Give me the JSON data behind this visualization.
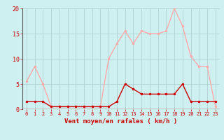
{
  "hours": [
    0,
    1,
    2,
    3,
    4,
    5,
    6,
    7,
    8,
    9,
    10,
    11,
    12,
    13,
    14,
    15,
    16,
    17,
    18,
    19,
    20,
    21,
    22,
    23
  ],
  "vent_moyen": [
    1.5,
    1.5,
    1.5,
    0.5,
    0.5,
    0.5,
    0.5,
    0.5,
    0.5,
    0.5,
    0.5,
    1.5,
    5.0,
    4.0,
    3.0,
    3.0,
    3.0,
    3.0,
    3.0,
    5.0,
    1.5,
    1.5,
    1.5,
    1.5
  ],
  "rafales": [
    5.5,
    8.5,
    5.0,
    0.5,
    0.5,
    0.5,
    0.5,
    0.5,
    0.5,
    0.5,
    10.0,
    13.0,
    15.5,
    13.0,
    15.5,
    15.0,
    15.0,
    15.5,
    20.0,
    16.5,
    10.5,
    8.5,
    8.5,
    0.5
  ],
  "color_moyen": "#cc0000",
  "color_rafales": "#ffaaaa",
  "background_color": "#cff0f0",
  "grid_color": "#aacccc",
  "xlabel": "Vent moyen/en rafales ( km/h )",
  "ylim": [
    0,
    20
  ],
  "yticks": [
    0,
    5,
    10,
    15,
    20
  ],
  "xlim": [
    -0.5,
    23.5
  ],
  "tick_color": "#cc0000",
  "xlabel_color": "#cc0000",
  "spine_color": "#cc0000"
}
